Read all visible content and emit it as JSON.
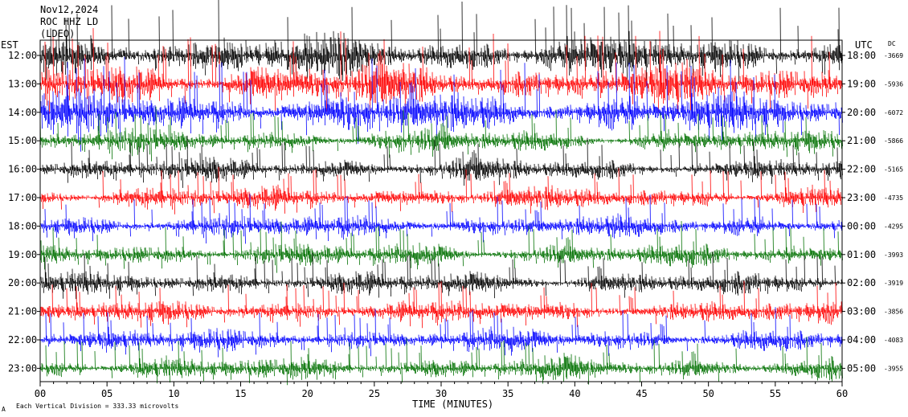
{
  "header": {
    "date": "Nov12,2024",
    "station": "ROC HHZ LD",
    "network": "(LDEO)"
  },
  "axes": {
    "left_title": "EST",
    "right_title": "UTC",
    "dc_title": "DC",
    "xlabel": "TIME (MINUTES)",
    "footer_note": "Each Vertical Division =  333.33 microvolts",
    "footer_mark": "A"
  },
  "chart_data": {
    "type": "line",
    "title": "",
    "xlabel": "TIME (MINUTES)",
    "xlim": [
      0,
      60
    ],
    "x_ticks": [
      "00",
      "05",
      "10",
      "15",
      "20",
      "25",
      "30",
      "35",
      "40",
      "45",
      "50",
      "55",
      "60"
    ],
    "trace_colors": [
      "#000000",
      "#ff0000",
      "#0000ff",
      "#007000"
    ],
    "rows": [
      {
        "est": "12:00",
        "utc": "18:00",
        "dc": "-3669",
        "color": "#000000",
        "amplitude": "high"
      },
      {
        "est": "13:00",
        "utc": "19:00",
        "dc": "-5936",
        "color": "#ff0000",
        "amplitude": "high"
      },
      {
        "est": "14:00",
        "utc": "20:00",
        "dc": "-6072",
        "color": "#0000ff",
        "amplitude": "high"
      },
      {
        "est": "15:00",
        "utc": "21:00",
        "dc": "-5866",
        "color": "#007000",
        "amplitude": "medium"
      },
      {
        "est": "16:00",
        "utc": "22:00",
        "dc": "-5165",
        "color": "#000000",
        "amplitude": "medium"
      },
      {
        "est": "17:00",
        "utc": "23:00",
        "dc": "-4735",
        "color": "#ff0000",
        "amplitude": "medium"
      },
      {
        "est": "18:00",
        "utc": "00:00",
        "dc": "-4295",
        "color": "#0000ff",
        "amplitude": "medium"
      },
      {
        "est": "19:00",
        "utc": "01:00",
        "dc": "-3993",
        "color": "#007000",
        "amplitude": "medium"
      },
      {
        "est": "20:00",
        "utc": "02:00",
        "dc": "-3919",
        "color": "#000000",
        "amplitude": "medium"
      },
      {
        "est": "21:00",
        "utc": "03:00",
        "dc": "-3856",
        "color": "#ff0000",
        "amplitude": "medium"
      },
      {
        "est": "22:00",
        "utc": "04:00",
        "dc": "-4083",
        "color": "#0000ff",
        "amplitude": "medium"
      },
      {
        "est": "23:00",
        "utc": "05:00",
        "dc": "-3955",
        "color": "#007000",
        "amplitude": "medium"
      }
    ]
  }
}
